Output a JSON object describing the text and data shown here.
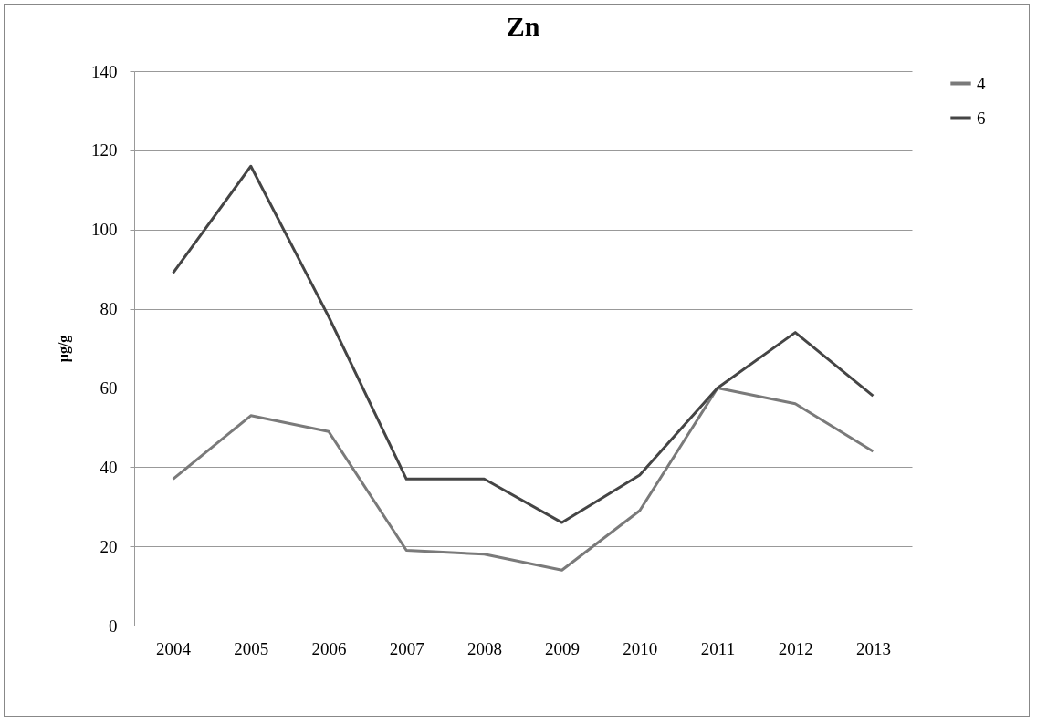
{
  "chart_data": {
    "type": "line",
    "title": "Zn",
    "ylabel": "µg/g",
    "categories": [
      "2004",
      "2005",
      "2006",
      "2007",
      "2008",
      "2009",
      "2010",
      "2011",
      "2012",
      "2013"
    ],
    "series": [
      {
        "name": "4",
        "color": "#7a7a7a",
        "values": [
          37,
          53,
          49,
          19,
          18,
          14,
          29,
          60,
          56,
          44
        ]
      },
      {
        "name": "6",
        "color": "#454545",
        "values": [
          89,
          116,
          78,
          37,
          37,
          26,
          38,
          60,
          74,
          58
        ]
      }
    ],
    "ylim": [
      0,
      140
    ],
    "yticks": [
      0,
      20,
      40,
      60,
      80,
      100,
      120,
      140
    ],
    "grid": "y",
    "legend": "right",
    "marker": "none",
    "line_style": "solid"
  }
}
